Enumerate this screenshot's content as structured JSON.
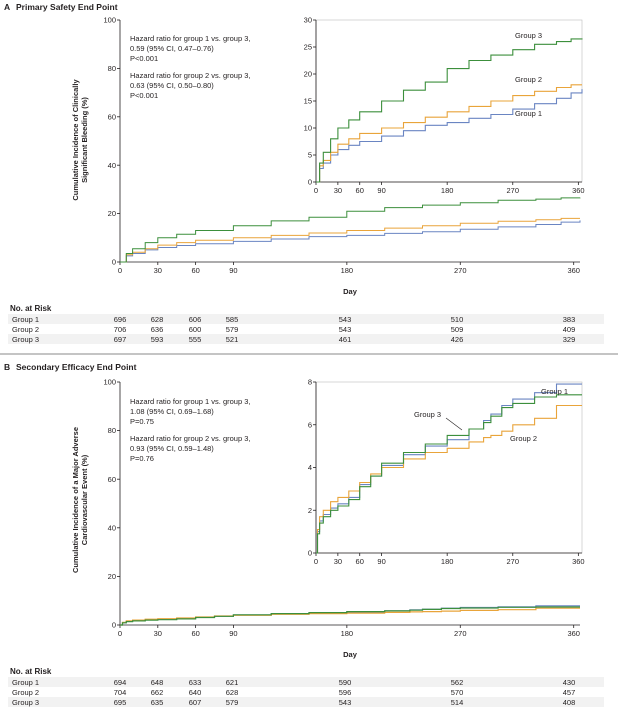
{
  "colors": {
    "group1": "#6a85c2",
    "group2": "#e9a43a",
    "group3": "#3c8f3c",
    "axis": "#231f20",
    "stripe": "#f2f2f2"
  },
  "risk_header": "No. at Risk",
  "panels": [
    {
      "letter": "A",
      "title": "Primary Safety End Point",
      "ylabel_lines": [
        "Cumulative Incidence of Clinically",
        "Significant Bleeding (%)"
      ],
      "xlabel": "Day",
      "annotations": [
        [
          "Hazard ratio for group 1 vs. group 3,",
          "0.59 (95% CI, 0.47–0.76)",
          "P<0.001"
        ],
        [
          "Hazard ratio for group 2 vs. group 3,",
          "0.63 (95% CI, 0.50–0.80)",
          "P<0.001"
        ]
      ],
      "risk_table": {
        "days": [
          "0",
          "30",
          "60",
          "90",
          "180",
          "270",
          "360"
        ],
        "rows": [
          {
            "group": "Group 1",
            "values": [
              "696",
              "628",
              "606",
              "585",
              "543",
              "510",
              "383"
            ]
          },
          {
            "group": "Group 2",
            "values": [
              "706",
              "636",
              "600",
              "579",
              "543",
              "509",
              "409"
            ]
          },
          {
            "group": "Group 3",
            "values": [
              "697",
              "593",
              "555",
              "521",
              "461",
              "426",
              "329"
            ]
          }
        ]
      }
    },
    {
      "letter": "B",
      "title": "Secondary Efficacy End Point",
      "ylabel_lines": [
        "Cumulative Incidence of a Major Adverse",
        "Cardiovascular Event (%)"
      ],
      "xlabel": "Day",
      "annotations": [
        [
          "Hazard ratio for group 1 vs. group 3,",
          "1.08 (95% CI, 0.69–1.68)",
          "P=0.75"
        ],
        [
          "Hazard ratio for group 2 vs. group 3,",
          "0.93  (95% CI, 0.59–1.48)",
          "P=0.76"
        ]
      ],
      "risk_table": {
        "days": [
          "0",
          "30",
          "60",
          "90",
          "180",
          "270",
          "360"
        ],
        "rows": [
          {
            "group": "Group 1",
            "values": [
              "694",
              "648",
              "633",
              "621",
              "590",
              "562",
              "430"
            ]
          },
          {
            "group": "Group 2",
            "values": [
              "704",
              "662",
              "640",
              "628",
              "596",
              "570",
              "457"
            ]
          },
          {
            "group": "Group 3",
            "values": [
              "695",
              "635",
              "607",
              "579",
              "543",
              "514",
              "408"
            ]
          }
        ]
      }
    }
  ],
  "chart_data": [
    {
      "type": "line",
      "panel": "A",
      "title": "Primary Safety End Point",
      "xlabel": "Day",
      "ylabel": "Cumulative Incidence of Clinically Significant Bleeding (%)",
      "xlim": [
        0,
        365
      ],
      "ylim": [
        0,
        100
      ],
      "xticks": [
        0,
        30,
        60,
        90,
        180,
        270,
        360
      ],
      "yticks": [
        0,
        20,
        40,
        60,
        80,
        100
      ],
      "series": [
        {
          "name": "Group 1",
          "x": [
            0,
            5,
            10,
            20,
            30,
            45,
            60,
            90,
            120,
            150,
            180,
            210,
            240,
            270,
            300,
            330,
            350,
            365
          ],
          "y": [
            0,
            2.5,
            3.5,
            5,
            6,
            6.8,
            7.5,
            8.5,
            9.5,
            10.5,
            11,
            11.8,
            12.5,
            13.5,
            14.5,
            15.5,
            16.5,
            17.2
          ]
        },
        {
          "name": "Group 2",
          "x": [
            0,
            5,
            10,
            20,
            30,
            45,
            60,
            90,
            120,
            150,
            180,
            210,
            240,
            270,
            300,
            330,
            350,
            365
          ],
          "y": [
            0,
            3,
            4,
            5.5,
            7,
            8,
            9,
            10,
            11,
            12,
            13,
            14,
            15,
            16,
            16.8,
            17.5,
            18,
            18
          ]
        },
        {
          "name": "Group 3",
          "x": [
            0,
            5,
            10,
            20,
            30,
            45,
            60,
            90,
            120,
            150,
            180,
            210,
            240,
            270,
            300,
            330,
            350,
            365
          ],
          "y": [
            0,
            3.5,
            5.5,
            8,
            10,
            11.5,
            13,
            15,
            17,
            18.5,
            21,
            22.5,
            23.5,
            24.5,
            25.5,
            26,
            26.5,
            26.6
          ]
        }
      ],
      "inset": {
        "xlim": [
          0,
          365
        ],
        "ylim": [
          0,
          30
        ],
        "xticks": [
          0,
          30,
          60,
          90,
          180,
          270,
          360
        ],
        "yticks": [
          0,
          5,
          10,
          15,
          20,
          25,
          30
        ],
        "labels": [
          "Group 3",
          "Group 2",
          "Group 1"
        ]
      }
    },
    {
      "type": "line",
      "panel": "B",
      "title": "Secondary Efficacy End Point",
      "xlabel": "Day",
      "ylabel": "Cumulative Incidence of a Major Adverse Cardiovascular Event (%)",
      "xlim": [
        0,
        365
      ],
      "ylim": [
        0,
        100
      ],
      "xticks": [
        0,
        30,
        60,
        90,
        180,
        270,
        360
      ],
      "yticks": [
        0,
        20,
        40,
        60,
        80,
        100
      ],
      "series": [
        {
          "name": "Group 1",
          "x": [
            0,
            2,
            5,
            10,
            20,
            30,
            45,
            60,
            75,
            90,
            120,
            150,
            180,
            210,
            230,
            240,
            255,
            270,
            300,
            330,
            365
          ],
          "y": [
            0,
            1,
            1.5,
            1.8,
            2.1,
            2.3,
            2.6,
            3.2,
            3.6,
            4.1,
            4.6,
            5,
            5.3,
            5.8,
            6.2,
            6.5,
            6.9,
            7.2,
            7.5,
            7.9,
            7.9
          ]
        },
        {
          "name": "Group 2",
          "x": [
            0,
            2,
            5,
            10,
            20,
            30,
            45,
            60,
            75,
            90,
            120,
            150,
            180,
            210,
            230,
            240,
            255,
            270,
            300,
            330,
            365
          ],
          "y": [
            0,
            1.1,
            1.7,
            2,
            2.4,
            2.6,
            2.9,
            3.3,
            3.7,
            4,
            4.4,
            4.7,
            4.9,
            5.2,
            5.4,
            5.5,
            5.7,
            6,
            6.3,
            6.9,
            6.9
          ]
        },
        {
          "name": "Group 3",
          "x": [
            0,
            2,
            5,
            10,
            20,
            30,
            45,
            60,
            75,
            90,
            120,
            150,
            180,
            210,
            230,
            240,
            255,
            270,
            300,
            330,
            365
          ],
          "y": [
            0,
            0.9,
            1.4,
            1.7,
            2,
            2.2,
            2.5,
            3.1,
            3.6,
            4.2,
            4.7,
            5.1,
            5.5,
            5.8,
            6.1,
            6.4,
            6.8,
            7,
            7.3,
            7.4,
            7.4
          ]
        }
      ],
      "inset": {
        "xlim": [
          0,
          365
        ],
        "ylim": [
          0,
          8
        ],
        "xticks": [
          0,
          30,
          60,
          90,
          180,
          270,
          360
        ],
        "yticks": [
          0,
          2,
          4,
          6,
          8
        ],
        "labels": [
          "Group 1",
          "Group 3",
          "Group 2"
        ]
      }
    }
  ]
}
